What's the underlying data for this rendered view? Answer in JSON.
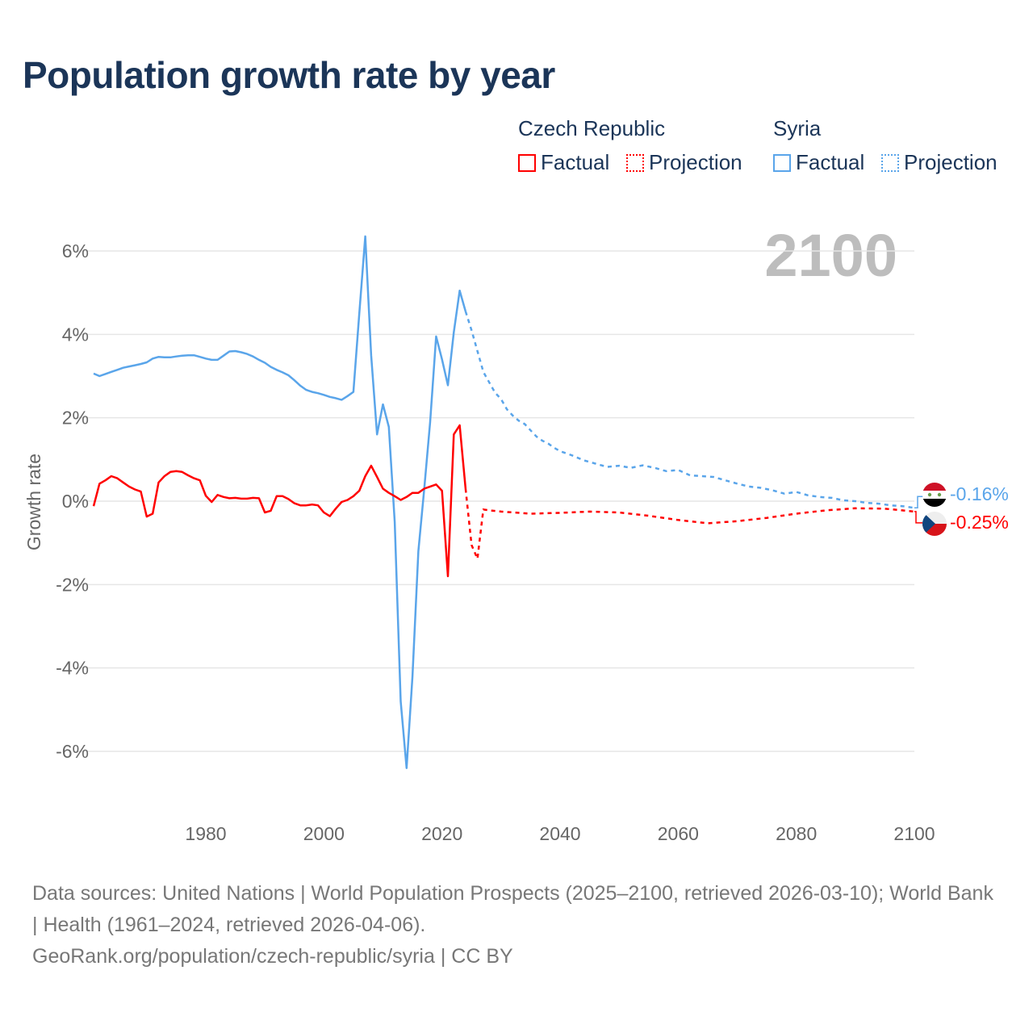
{
  "title": "Population growth rate by year",
  "legend": {
    "groups": [
      {
        "name": "Czech Republic",
        "color": "#ff0000",
        "factual": "Factual",
        "projection": "Projection"
      },
      {
        "name": "Syria",
        "color": "#5aa5ea",
        "factual": "Factual",
        "projection": "Projection"
      }
    ]
  },
  "year_watermark": "2100",
  "chart_data": {
    "type": "line",
    "title": "Population growth rate by year",
    "xlabel": "",
    "ylabel": "Growth rate",
    "xlim": [
      1961,
      2100
    ],
    "ylim": [
      -7,
      6.8
    ],
    "x_ticks": [
      1980,
      2000,
      2020,
      2040,
      2060,
      2080,
      2100
    ],
    "y_ticks": [
      6,
      4,
      2,
      0,
      -2,
      -4,
      -6
    ],
    "y_tick_labels": [
      "6%",
      "4%",
      "2%",
      "0%",
      "-2%",
      "-4%",
      "-6%"
    ],
    "grid": "horizontal",
    "series": [
      {
        "name": "Syria Factual",
        "color": "#5aa5ea",
        "dashed": false,
        "x": [
          1961,
          1962,
          1963,
          1964,
          1965,
          1966,
          1967,
          1968,
          1969,
          1970,
          1971,
          1972,
          1973,
          1974,
          1975,
          1976,
          1977,
          1978,
          1979,
          1980,
          1981,
          1982,
          1983,
          1984,
          1985,
          1986,
          1987,
          1988,
          1989,
          1990,
          1991,
          1992,
          1993,
          1994,
          1995,
          1996,
          1997,
          1998,
          1999,
          2000,
          2001,
          2002,
          2003,
          2004,
          2005,
          2006,
          2007,
          2008,
          2009,
          2010,
          2011,
          2012,
          2013,
          2014,
          2015,
          2016,
          2017,
          2018,
          2019,
          2020,
          2021,
          2022,
          2023,
          2024
        ],
        "y": [
          3.06,
          3.0,
          3.05,
          3.1,
          3.15,
          3.2,
          3.23,
          3.26,
          3.29,
          3.33,
          3.42,
          3.46,
          3.45,
          3.45,
          3.47,
          3.49,
          3.5,
          3.5,
          3.46,
          3.42,
          3.39,
          3.39,
          3.49,
          3.59,
          3.6,
          3.57,
          3.53,
          3.47,
          3.39,
          3.32,
          3.22,
          3.15,
          3.09,
          3.02,
          2.9,
          2.77,
          2.67,
          2.62,
          2.59,
          2.55,
          2.5,
          2.47,
          2.43,
          2.52,
          2.62,
          4.5,
          6.35,
          3.5,
          1.6,
          2.32,
          1.78,
          -0.5,
          -4.8,
          -6.4,
          -4.2,
          -1.2,
          0.3,
          1.9,
          3.95,
          3.4,
          2.78,
          4.05,
          5.05,
          4.55
        ]
      },
      {
        "name": "Syria Projection",
        "color": "#5aa5ea",
        "dashed": true,
        "x": [
          2024,
          2025,
          2026,
          2027,
          2028,
          2029,
          2030,
          2031,
          2032,
          2033,
          2034,
          2035,
          2036,
          2037,
          2038,
          2039,
          2040,
          2042,
          2044,
          2046,
          2048,
          2050,
          2052,
          2054,
          2056,
          2058,
          2060,
          2062,
          2064,
          2066,
          2068,
          2070,
          2072,
          2074,
          2076,
          2078,
          2080,
          2082,
          2084,
          2086,
          2088,
          2090,
          2092,
          2094,
          2096,
          2098,
          2100
        ],
        "y": [
          4.55,
          4.1,
          3.6,
          3.1,
          2.85,
          2.6,
          2.45,
          2.2,
          2.05,
          1.93,
          1.85,
          1.7,
          1.55,
          1.45,
          1.38,
          1.28,
          1.2,
          1.1,
          0.98,
          0.9,
          0.82,
          0.85,
          0.8,
          0.86,
          0.8,
          0.72,
          0.75,
          0.62,
          0.6,
          0.58,
          0.5,
          0.42,
          0.35,
          0.32,
          0.26,
          0.18,
          0.22,
          0.14,
          0.1,
          0.08,
          0.02,
          0.0,
          -0.04,
          -0.06,
          -0.1,
          -0.12,
          -0.16
        ]
      },
      {
        "name": "Czech Republic Factual",
        "color": "#ff0000",
        "dashed": false,
        "x": [
          1961,
          1962,
          1963,
          1964,
          1965,
          1966,
          1967,
          1968,
          1969,
          1970,
          1971,
          1972,
          1973,
          1974,
          1975,
          1976,
          1977,
          1978,
          1979,
          1980,
          1981,
          1982,
          1983,
          1984,
          1985,
          1986,
          1987,
          1988,
          1989,
          1990,
          1991,
          1992,
          1993,
          1994,
          1995,
          1996,
          1997,
          1998,
          1999,
          2000,
          2001,
          2002,
          2003,
          2004,
          2005,
          2006,
          2007,
          2008,
          2009,
          2010,
          2011,
          2012,
          2013,
          2014,
          2015,
          2016,
          2017,
          2018,
          2019,
          2020,
          2021,
          2022,
          2023,
          2024
        ],
        "y": [
          -0.12,
          0.42,
          0.5,
          0.6,
          0.55,
          0.45,
          0.35,
          0.28,
          0.23,
          -0.37,
          -0.3,
          0.45,
          0.6,
          0.7,
          0.72,
          0.7,
          0.62,
          0.55,
          0.5,
          0.13,
          -0.02,
          0.15,
          0.1,
          0.07,
          0.08,
          0.06,
          0.06,
          0.08,
          0.07,
          -0.27,
          -0.23,
          0.12,
          0.12,
          0.05,
          -0.05,
          -0.1,
          -0.1,
          -0.08,
          -0.1,
          -0.27,
          -0.36,
          -0.18,
          -0.02,
          0.03,
          0.12,
          0.25,
          0.6,
          0.85,
          0.58,
          0.3,
          0.2,
          0.12,
          0.03,
          0.1,
          0.2,
          0.2,
          0.3,
          0.35,
          0.4,
          0.25,
          -1.8,
          1.6,
          1.82,
          0.3
        ]
      },
      {
        "name": "Czech Republic Projection",
        "color": "#ff0000",
        "dashed": true,
        "x": [
          2024,
          2025,
          2026,
          2027,
          2028,
          2030,
          2035,
          2040,
          2045,
          2050,
          2055,
          2060,
          2065,
          2070,
          2075,
          2080,
          2085,
          2090,
          2095,
          2100
        ],
        "y": [
          0.3,
          -1.05,
          -1.38,
          -0.2,
          -0.22,
          -0.25,
          -0.3,
          -0.28,
          -0.25,
          -0.27,
          -0.35,
          -0.45,
          -0.53,
          -0.48,
          -0.4,
          -0.3,
          -0.22,
          -0.17,
          -0.18,
          -0.25
        ]
      }
    ],
    "end_labels": [
      {
        "country": "Syria",
        "value": "-0.16%",
        "color": "#5aa5ea"
      },
      {
        "country": "Czech Republic",
        "value": "-0.25%",
        "color": "#ff0000"
      }
    ]
  },
  "footer": {
    "sources": "Data sources: United Nations | World Population Prospects (2025–2100, retrieved 2026-03-10); World Bank | Health (1961–2024, retrieved 2026-04-06).",
    "link": "GeoRank.org/population/czech-republic/syria | CC BY"
  }
}
